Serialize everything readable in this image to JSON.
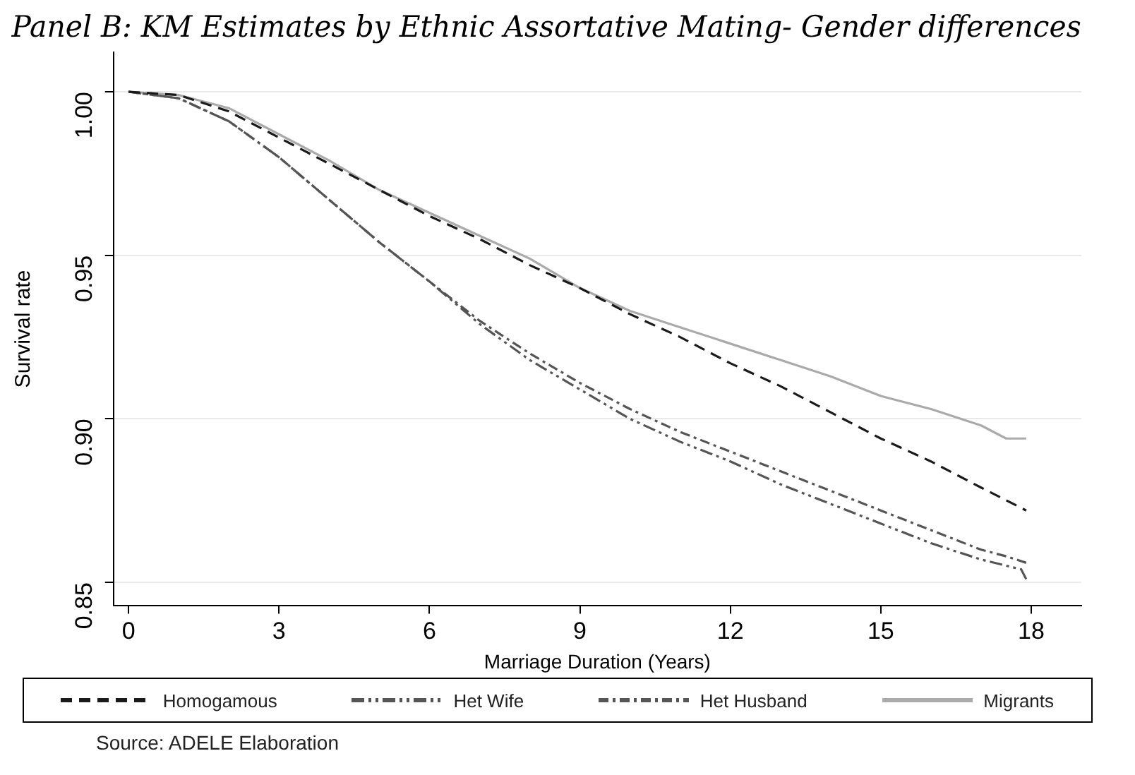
{
  "chart_data": {
    "type": "line",
    "title": "Panel B: KM Estimates by Ethnic Assortative Mating- Gender differences",
    "xlabel": "Marriage Duration (Years)",
    "ylabel": "Survival rate",
    "annotations": [
      "Source: ADELE Elaboration"
    ],
    "xlim": [
      -0.3,
      19
    ],
    "xticks": [
      0,
      3,
      6,
      9,
      12,
      15,
      18
    ],
    "ylim": [
      0.843,
      1.012
    ],
    "yticks": [
      {
        "value": 0.85,
        "label": "0.85"
      },
      {
        "value": 0.9,
        "label": "0.90"
      },
      {
        "value": 0.95,
        "label": "0.95"
      },
      {
        "value": 1,
        "label": "1.00"
      }
    ],
    "grid": "y",
    "legend": "bottom",
    "marker": "none",
    "series": [
      {
        "name": "Homogamous",
        "color": "#1a1a1a",
        "line_style": "dashed",
        "x": [
          0,
          1,
          2,
          3,
          4,
          5,
          6,
          7,
          8,
          9,
          10,
          11,
          12,
          13,
          14,
          15,
          16,
          17,
          17.9
        ],
        "values": [
          1.0,
          0.999,
          0.994,
          0.986,
          0.978,
          0.97,
          0.962,
          0.955,
          0.947,
          0.94,
          0.932,
          0.925,
          0.917,
          0.91,
          0.902,
          0.894,
          0.887,
          0.879,
          0.872
        ]
      },
      {
        "name": "Het Wife",
        "color": "#555555",
        "line_style": "dashdotdot",
        "x": [
          0,
          1,
          2,
          3,
          4,
          5,
          6,
          7,
          8,
          9,
          10,
          11,
          12,
          13,
          14,
          15,
          16,
          17,
          17.8,
          17.9
        ],
        "values": [
          1.0,
          0.998,
          0.991,
          0.98,
          0.967,
          0.954,
          0.942,
          0.929,
          0.918,
          0.909,
          0.9,
          0.893,
          0.887,
          0.88,
          0.874,
          0.868,
          0.862,
          0.857,
          0.854,
          0.851
        ]
      },
      {
        "name": "Het Husband",
        "color": "#555555",
        "line_style": "dashdot",
        "x": [
          0,
          1,
          2,
          3,
          4,
          5,
          6,
          7,
          8,
          9,
          10,
          11,
          12,
          13,
          14,
          15,
          16,
          17,
          17.5,
          17.9
        ],
        "values": [
          1.0,
          0.998,
          0.991,
          0.98,
          0.967,
          0.954,
          0.942,
          0.93,
          0.92,
          0.911,
          0.903,
          0.896,
          0.89,
          0.884,
          0.878,
          0.872,
          0.866,
          0.86,
          0.858,
          0.856
        ]
      },
      {
        "name": "Migrants",
        "color": "#aaaaaa",
        "line_style": "solid",
        "x": [
          0,
          1,
          2,
          3,
          4,
          5,
          6,
          7,
          8,
          9,
          10,
          11,
          12,
          13,
          14,
          15,
          16,
          17,
          17.5,
          17.9
        ],
        "values": [
          1.0,
          0.999,
          0.995,
          0.987,
          0.979,
          0.97,
          0.963,
          0.956,
          0.949,
          0.94,
          0.933,
          0.928,
          0.923,
          0.918,
          0.913,
          0.907,
          0.903,
          0.898,
          0.894,
          0.894
        ]
      }
    ]
  }
}
